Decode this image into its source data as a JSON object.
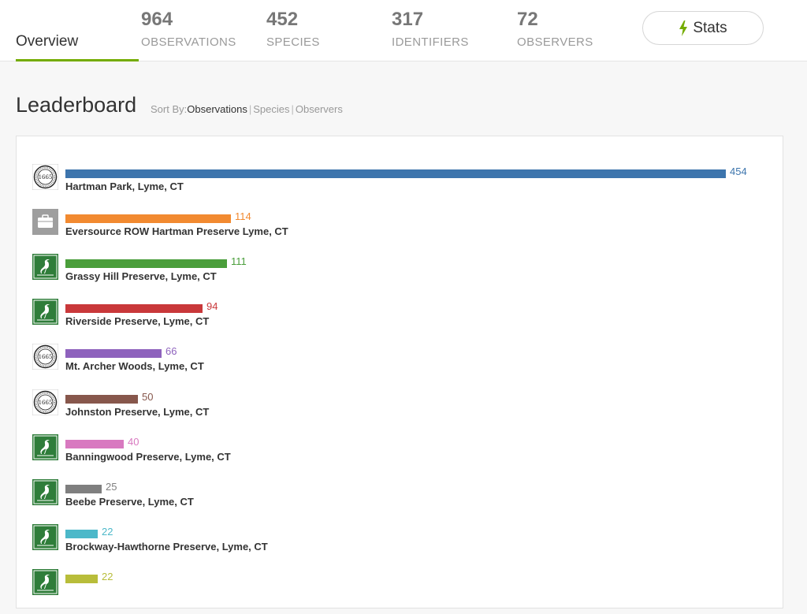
{
  "tabs": {
    "overview_label": "Overview",
    "observations": {
      "value": "964",
      "label": "OBSERVATIONS"
    },
    "species": {
      "value": "452",
      "label": "SPECIES"
    },
    "identifiers": {
      "value": "317",
      "label": "IDENTIFIERS"
    },
    "observers": {
      "value": "72",
      "label": "OBSERVERS"
    },
    "stats_button": {
      "label": "Stats",
      "icon": "lightning-bolt-icon",
      "icon_color": "#74ac00"
    }
  },
  "leaderboard": {
    "title": "Leaderboard",
    "sort_by": {
      "label": "Sort By:",
      "options": [
        "Observations",
        "Species",
        "Observers"
      ],
      "selected": "Observations"
    },
    "max_value": 454,
    "rows": [
      {
        "name": "Hartman Park, Lyme, CT",
        "value": 454,
        "color": "#3d75ad",
        "logo": "town-seal-icon",
        "seal_text": "1665"
      },
      {
        "name": "Eversource ROW Hartman Preserve Lyme, CT",
        "value": 114,
        "color": "#f28a30",
        "logo": "briefcase-icon"
      },
      {
        "name": "Grassy Hill Preserve, Lyme, CT",
        "value": 111,
        "color": "#4a9e3b",
        "logo": "heron-icon"
      },
      {
        "name": "Riverside Preserve, Lyme, CT",
        "value": 94,
        "color": "#c9383a",
        "logo": "heron-icon"
      },
      {
        "name": "Mt. Archer Woods, Lyme, CT",
        "value": 66,
        "color": "#8e62bd",
        "logo": "town-seal-icon",
        "seal_text": "1665"
      },
      {
        "name": "Johnston Preserve, Lyme, CT",
        "value": 50,
        "color": "#87574c",
        "logo": "town-seal-icon",
        "seal_text": "1665"
      },
      {
        "name": "Banningwood Preserve, Lyme, CT",
        "value": 40,
        "color": "#d879c0",
        "logo": "heron-icon"
      },
      {
        "name": "Beebe Preserve, Lyme, CT",
        "value": 25,
        "color": "#7f7f7f",
        "logo": "heron-icon"
      },
      {
        "name": "Brockway-Hawthorne Preserve, Lyme, CT",
        "value": 22,
        "color": "#4cb8c9",
        "logo": "heron-icon"
      },
      {
        "name": "",
        "value": 22,
        "color": "#b8bd3a",
        "logo": "heron-icon"
      }
    ]
  }
}
